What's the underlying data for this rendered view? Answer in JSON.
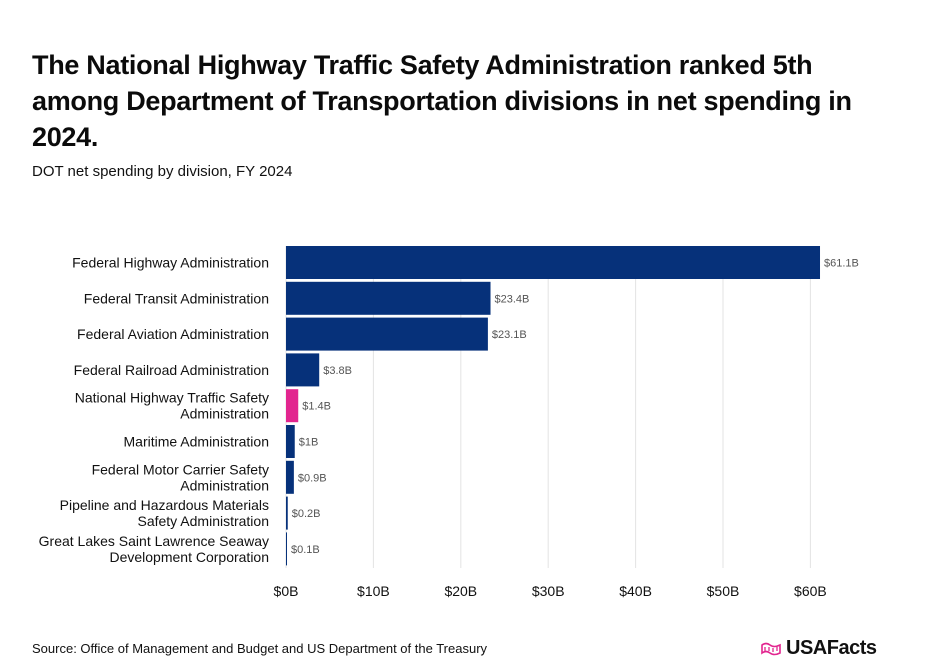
{
  "title": "The National Highway Traffic Safety Administration ranked 5th among Department of Transportation divisions in net spending in 2024.",
  "subtitle": "DOT net spending by division, FY 2024",
  "source": "Source: Office of Management and Budget and US Department of the Treasury",
  "brand": "USAFacts",
  "colors": {
    "bar": "#06317a",
    "highlight": "#e2258f",
    "grid": "#e3e3e3",
    "text": "#111111",
    "label": "#555555"
  },
  "chart_data": {
    "type": "bar",
    "orientation": "horizontal",
    "title": "DOT net spending by division, FY 2024",
    "xlabel": "",
    "ylabel": "",
    "xlim": [
      0,
      65
    ],
    "categories": [
      [
        "Federal Highway Administration"
      ],
      [
        "Federal Transit Administration"
      ],
      [
        "Federal Aviation Administration"
      ],
      [
        "Federal Railroad Administration"
      ],
      [
        "National Highway Traffic Safety",
        "Administration"
      ],
      [
        "Maritime Administration"
      ],
      [
        "Federal Motor Carrier Safety",
        "Administration"
      ],
      [
        "Pipeline and Hazardous Materials",
        "Safety Administration"
      ],
      [
        "Great Lakes Saint Lawrence Seaway",
        "Development Corporation"
      ]
    ],
    "values": [
      61.1,
      23.4,
      23.1,
      3.8,
      1.4,
      1.0,
      0.9,
      0.2,
      0.1
    ],
    "value_labels": [
      "$61.1B",
      "$23.4B",
      "$23.1B",
      "$3.8B",
      "$1.4B",
      "$1B",
      "$0.9B",
      "$0.2B",
      "$0.1B"
    ],
    "highlight_index": 4,
    "ticks": [
      0,
      10,
      20,
      30,
      40,
      50,
      60
    ],
    "tick_labels": [
      "$0B",
      "$10B",
      "$20B",
      "$30B",
      "$40B",
      "$50B",
      "$60B"
    ]
  }
}
